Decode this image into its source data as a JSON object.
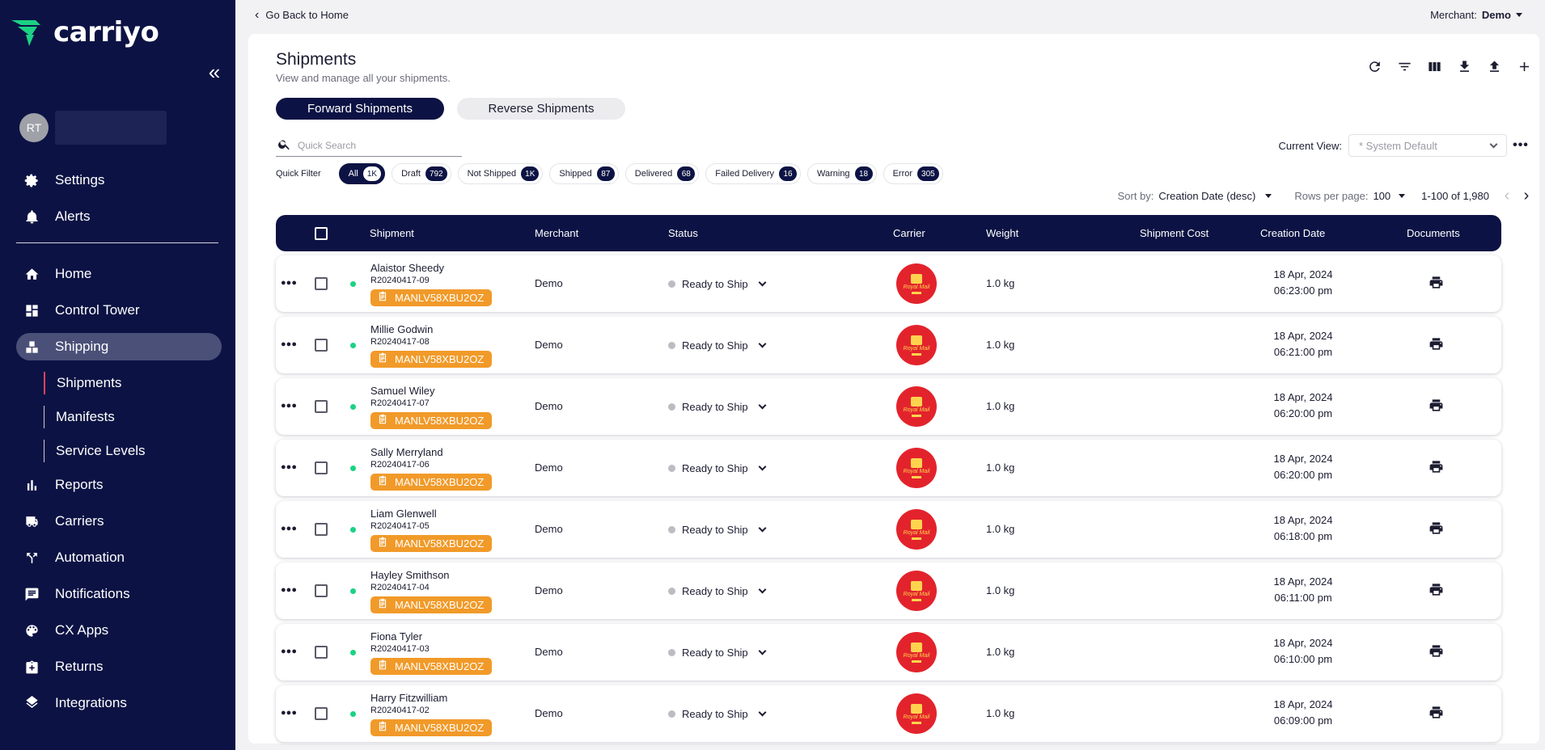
{
  "brand": {
    "logo_text": "carriyo",
    "accent": "#1bd284",
    "navy": "#0c1344"
  },
  "user": {
    "initials": "RT"
  },
  "nav": {
    "top": [
      {
        "label": "Settings",
        "icon": "gear-icon"
      },
      {
        "label": "Alerts",
        "icon": "bell-icon"
      }
    ],
    "main": [
      {
        "label": "Home",
        "icon": "home-icon"
      },
      {
        "label": "Control Tower",
        "icon": "dashboard-icon"
      },
      {
        "label": "Shipping",
        "icon": "boxes-icon",
        "active": true
      },
      {
        "label": "Reports",
        "icon": "bar-chart-icon"
      },
      {
        "label": "Carriers",
        "icon": "truck-icon"
      },
      {
        "label": "Automation",
        "icon": "fork-icon"
      },
      {
        "label": "Notifications",
        "icon": "chat-icon"
      },
      {
        "label": "CX Apps",
        "icon": "palette-icon"
      },
      {
        "label": "Returns",
        "icon": "return-icon"
      },
      {
        "label": "Integrations",
        "icon": "layers-icon"
      }
    ],
    "sub": [
      {
        "label": "Shipments",
        "active": true
      },
      {
        "label": "Manifests"
      },
      {
        "label": "Service Levels"
      }
    ]
  },
  "topbar": {
    "back_label": "Go Back to Home",
    "merchant_label": "Merchant:",
    "merchant_value": "Demo"
  },
  "page": {
    "title": "Shipments",
    "subtitle": "View and manage all your shipments."
  },
  "tabs": [
    {
      "label": "Forward Shipments",
      "active": true
    },
    {
      "label": "Reverse Shipments"
    }
  ],
  "search": {
    "placeholder": "Quick Search"
  },
  "view": {
    "label": "Current View:",
    "placeholder": "* System Default"
  },
  "quick_filter": {
    "label": "Quick Filter",
    "chips": [
      {
        "label": "All",
        "count": "1K",
        "active": true
      },
      {
        "label": "Draft",
        "count": "792"
      },
      {
        "label": "Not Shipped",
        "count": "1K"
      },
      {
        "label": "Shipped",
        "count": "87"
      },
      {
        "label": "Delivered",
        "count": "68"
      },
      {
        "label": "Failed Delivery",
        "count": "16"
      },
      {
        "label": "Warning",
        "count": "18"
      },
      {
        "label": "Error",
        "count": "305"
      }
    ]
  },
  "sort": {
    "label": "Sort by:",
    "value": "Creation Date (desc)"
  },
  "pagination": {
    "rows_label": "Rows per page:",
    "rows_value": "100",
    "range": "1-100 of 1,980"
  },
  "table": {
    "columns": [
      "Shipment",
      "Merchant",
      "Status",
      "Carrier",
      "Weight",
      "Shipment Cost",
      "Creation Date",
      "Documents"
    ],
    "carrier_logo_text": "Royal Mail",
    "rows": [
      {
        "name": "Alaistor Sheedy",
        "ref": "R20240417-09",
        "manifest": "MANLV58XBU2OZ",
        "merchant": "Demo",
        "status": "Ready to Ship",
        "weight": "1.0 kg",
        "cost": "",
        "date": "18 Apr, 2024",
        "time": "06:23:00 pm"
      },
      {
        "name": "Millie Godwin",
        "ref": "R20240417-08",
        "manifest": "MANLV58XBU2OZ",
        "merchant": "Demo",
        "status": "Ready to Ship",
        "weight": "1.0 kg",
        "cost": "",
        "date": "18 Apr, 2024",
        "time": "06:21:00 pm"
      },
      {
        "name": "Samuel Wiley",
        "ref": "R20240417-07",
        "manifest": "MANLV58XBU2OZ",
        "merchant": "Demo",
        "status": "Ready to Ship",
        "weight": "1.0 kg",
        "cost": "",
        "date": "18 Apr, 2024",
        "time": "06:20:00 pm"
      },
      {
        "name": "Sally Merryland",
        "ref": "R20240417-06",
        "manifest": "MANLV58XBU2OZ",
        "merchant": "Demo",
        "status": "Ready to Ship",
        "weight": "1.0 kg",
        "cost": "",
        "date": "18 Apr, 2024",
        "time": "06:20:00 pm"
      },
      {
        "name": "Liam Glenwell",
        "ref": "R20240417-05",
        "manifest": "MANLV58XBU2OZ",
        "merchant": "Demo",
        "status": "Ready to Ship",
        "weight": "1.0 kg",
        "cost": "",
        "date": "18 Apr, 2024",
        "time": "06:18:00 pm"
      },
      {
        "name": "Hayley Smithson",
        "ref": "R20240417-04",
        "manifest": "MANLV58XBU2OZ",
        "merchant": "Demo",
        "status": "Ready to Ship",
        "weight": "1.0 kg",
        "cost": "",
        "date": "18 Apr, 2024",
        "time": "06:11:00 pm"
      },
      {
        "name": "Fiona Tyler",
        "ref": "R20240417-03",
        "manifest": "MANLV58XBU2OZ",
        "merchant": "Demo",
        "status": "Ready to Ship",
        "weight": "1.0 kg",
        "cost": "",
        "date": "18 Apr, 2024",
        "time": "06:10:00 pm"
      },
      {
        "name": "Harry Fitzwilliam",
        "ref": "R20240417-02",
        "manifest": "MANLV58XBU2OZ",
        "merchant": "Demo",
        "status": "Ready to Ship",
        "weight": "1.0 kg",
        "cost": "",
        "date": "18 Apr, 2024",
        "time": "06:09:00 pm"
      }
    ]
  }
}
